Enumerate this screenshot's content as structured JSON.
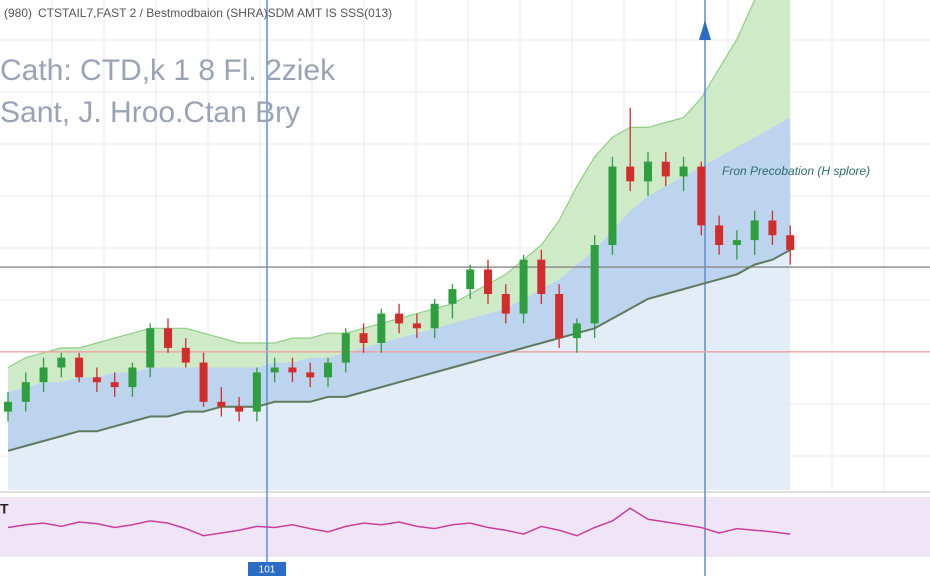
{
  "header": {
    "badge": "(980)",
    "title": "CTSTAIL7,FAST 2 / Bestmodbaion (SHRA)SDM AMT IS SSS(013)",
    "line1": "Cath: CTD,k 1 8 Fl. 2ziek",
    "line2": "Sant, J. Hroo.Ctan Bry"
  },
  "chart_data": {
    "type": "candlestick",
    "ylim": [
      0,
      100
    ],
    "up_color": "#2e9e3e",
    "down_color": "#d22c2c",
    "categories": [
      null,
      null,
      null,
      null,
      null,
      null,
      null,
      null,
      null,
      null,
      null,
      null,
      null,
      null,
      null,
      null,
      null,
      null,
      null,
      null,
      null,
      null,
      null,
      null,
      null,
      null,
      null,
      null,
      null,
      null,
      null,
      null,
      null,
      null,
      null,
      null,
      null,
      null,
      null,
      null,
      null,
      null,
      null,
      null,
      null
    ],
    "open": [
      16,
      18,
      22,
      25,
      27,
      23,
      22,
      21,
      25,
      33,
      29,
      26,
      18,
      17,
      16,
      24,
      25,
      24,
      23,
      26,
      32,
      30,
      36,
      34,
      33,
      38,
      41,
      45,
      40,
      36,
      47,
      40,
      31,
      34,
      50,
      66,
      63,
      67,
      64,
      66,
      54,
      50,
      51,
      55,
      52
    ],
    "high": [
      20,
      24,
      27,
      28,
      28,
      25,
      24,
      26,
      34,
      35,
      31,
      28,
      21,
      19,
      25,
      27,
      27,
      26,
      27,
      33,
      34,
      37,
      38,
      36,
      39,
      42,
      46,
      47,
      42,
      48,
      49,
      42,
      35,
      52,
      68,
      78,
      69,
      69,
      68,
      67,
      56,
      53,
      57,
      57,
      54
    ],
    "low": [
      14,
      16,
      20,
      23,
      22,
      20,
      19,
      19,
      23,
      28,
      25,
      17,
      15,
      14,
      14,
      22,
      22,
      21,
      21,
      24,
      28,
      28,
      32,
      31,
      31,
      35,
      39,
      38,
      34,
      34,
      38,
      29,
      28,
      31,
      48,
      61,
      60,
      62,
      61,
      52,
      48,
      47,
      48,
      50,
      46
    ],
    "close": [
      18,
      22,
      25,
      27,
      23,
      22,
      21,
      25,
      33,
      29,
      26,
      18,
      17,
      16,
      24,
      25,
      24,
      23,
      26,
      32,
      30,
      36,
      34,
      33,
      38,
      41,
      45,
      40,
      36,
      47,
      40,
      31,
      34,
      50,
      66,
      63,
      67,
      64,
      66,
      54,
      50,
      51,
      55,
      52,
      49
    ],
    "ma": {
      "color": "#5f7a5f",
      "values": [
        8,
        9,
        10,
        11,
        12,
        12,
        13,
        14,
        15,
        15,
        16,
        16,
        17,
        17,
        17,
        18,
        18,
        18,
        19,
        19,
        20,
        21,
        22,
        23,
        24,
        25,
        26,
        27,
        28,
        29,
        30,
        31,
        32,
        33,
        35,
        37,
        39,
        40,
        41,
        42,
        43,
        44,
        46,
        47,
        49
      ]
    },
    "band_upper": {
      "color": "#cfeac7",
      "values": [
        25,
        27,
        28,
        29,
        29,
        30,
        31,
        32,
        33,
        33,
        33,
        32,
        31,
        30,
        30,
        30,
        31,
        31,
        32,
        32,
        33,
        34,
        35,
        36,
        37,
        38,
        40,
        42,
        44,
        47,
        50,
        55,
        62,
        68,
        72,
        74,
        74,
        75,
        76,
        80,
        86,
        92,
        100,
        108,
        115
      ]
    },
    "band_mid": {
      "color": "#bcd4ee",
      "values": [
        20,
        21,
        22,
        22,
        23,
        23,
        24,
        24,
        25,
        25,
        25,
        25,
        25,
        25,
        25,
        26,
        26,
        27,
        27,
        28,
        29,
        30,
        31,
        32,
        33,
        34,
        35,
        36,
        37,
        39,
        41,
        43,
        46,
        49,
        53,
        57,
        60,
        62,
        64,
        66,
        68,
        70,
        72,
        74,
        76
      ]
    },
    "hlines": [
      {
        "value": 45.5,
        "color": "#888888"
      },
      {
        "value": 28.2,
        "color": "#f0a0a0"
      }
    ],
    "annotation": "Fron Precobation (H splore)",
    "rsi": {
      "label": "T",
      "color": "#c8409a",
      "ylim": [
        0,
        100
      ],
      "values": [
        50,
        55,
        58,
        52,
        60,
        57,
        50,
        55,
        62,
        58,
        48,
        35,
        40,
        45,
        52,
        50,
        55,
        48,
        42,
        52,
        58,
        55,
        60,
        52,
        48,
        55,
        58,
        50,
        45,
        38,
        52,
        45,
        35,
        50,
        62,
        85,
        65,
        60,
        55,
        50,
        40,
        48,
        45,
        42,
        38
      ]
    },
    "x_badge": "101"
  }
}
